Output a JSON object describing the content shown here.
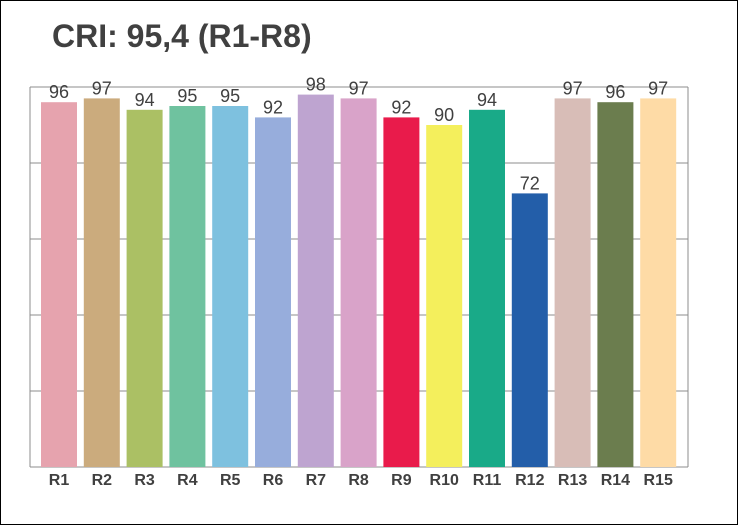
{
  "chart_data": {
    "type": "bar",
    "title": "CRI: 95,4 (R1-R8)",
    "xlabel": "",
    "ylabel": "",
    "categories": [
      "R1",
      "R2",
      "R3",
      "R4",
      "R5",
      "R6",
      "R7",
      "R8",
      "R9",
      "R10",
      "R11",
      "R12",
      "R13",
      "R14",
      "R15"
    ],
    "values": [
      96,
      97,
      94,
      95,
      95,
      92,
      98,
      97,
      92,
      90,
      94,
      72,
      97,
      96,
      97
    ],
    "colors": [
      "#E6A3AE",
      "#CBAB7D",
      "#ABC064",
      "#6FC29F",
      "#7EC1DF",
      "#97ADDC",
      "#BEA4D0",
      "#D9A3C9",
      "#E91B4B",
      "#F4EF5C",
      "#19AA88",
      "#235EA9",
      "#D8BDB7",
      "#6B7D4E",
      "#FEDBA6"
    ],
    "ylim": [
      0,
      100
    ],
    "grid": true,
    "legend": "none"
  }
}
